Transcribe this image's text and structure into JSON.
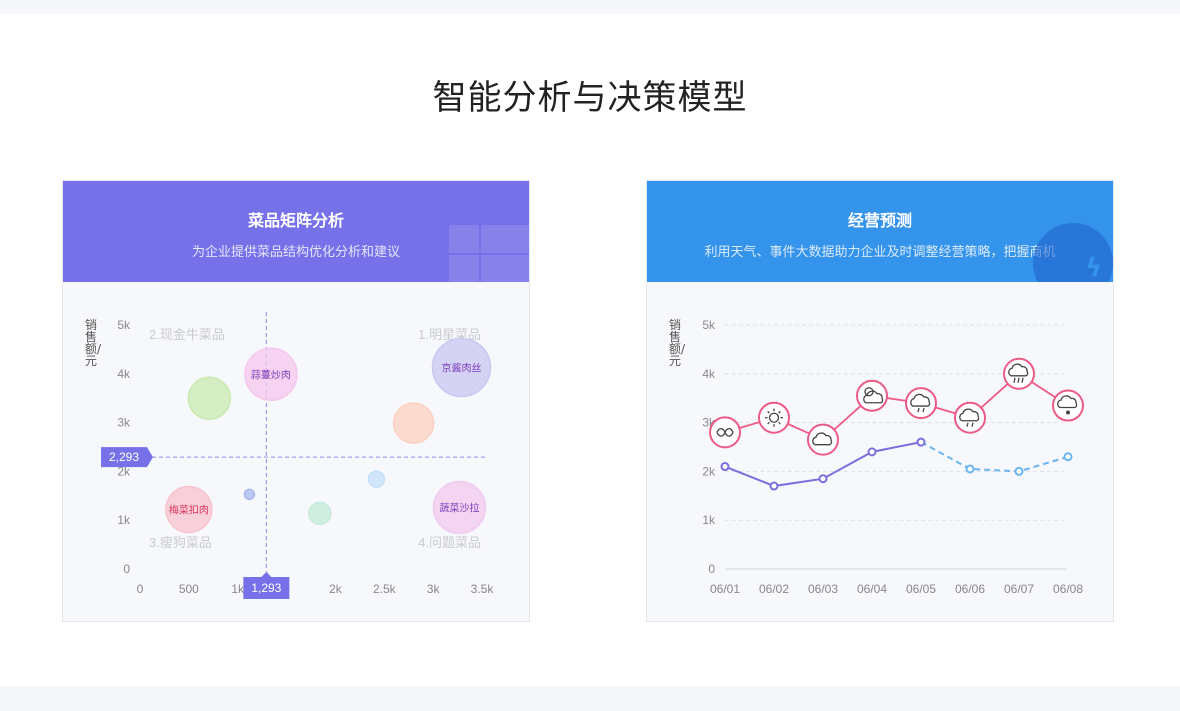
{
  "page": {
    "title": "智能分析与决策模型"
  },
  "left_card": {
    "title": "菜品矩阵分析",
    "subtitle": "为企业提供菜品结构优化分析和建议",
    "ylabel": "销售额/元",
    "quadrants": [
      "2.现金牛菜品",
      "1.明星菜品",
      "3.瘦狗菜品",
      "4.问题菜品"
    ],
    "yticks": [
      "5k",
      "4k",
      "3k",
      "2k",
      "1k",
      "0"
    ],
    "xticks": [
      "0",
      "500",
      "1k",
      "1,293",
      "2k",
      "2.5k",
      "3k",
      "3.5k"
    ],
    "crosshair": {
      "x": 1293,
      "y": 2293,
      "x_label": "1,293",
      "y_label": "2,293"
    }
  },
  "right_card": {
    "title": "经营预测",
    "subtitle": "利用天气、事件大数据助力企业及时调整经营策略，把握商机",
    "ylabel": "销售额/元",
    "yticks": [
      "5k",
      "4k",
      "3k",
      "2k",
      "1k",
      "0"
    ],
    "xticks": [
      "06/01",
      "06/02",
      "06/03",
      "06/04",
      "06/05",
      "06/06",
      "06/07",
      "06/08"
    ]
  },
  "chart_data": [
    {
      "type": "scatter",
      "title": "菜品矩阵分析",
      "xlabel": "",
      "ylabel": "销售额/元",
      "xlim": [
        0,
        3500
      ],
      "ylim": [
        0,
        5000
      ],
      "grid": false,
      "points": [
        {
          "label": "",
          "x": 710,
          "y": 3500,
          "size": 21,
          "color": "#c8eab0"
        },
        {
          "label": "蒜薹炒肉",
          "x": 1340,
          "y": 3990,
          "size": 26,
          "color": "#f5c7ee"
        },
        {
          "label": "京酱肉丝",
          "x": 3290,
          "y": 4130,
          "size": 29,
          "color": "#c9c7f2"
        },
        {
          "label": "",
          "x": 2800,
          "y": 2990,
          "size": 20,
          "color": "#fcd0c0"
        },
        {
          "label": "",
          "x": 2420,
          "y": 1840,
          "size": 8,
          "color": "#c3dff8"
        },
        {
          "label": "",
          "x": 1120,
          "y": 1530,
          "size": 5,
          "color": "#a9b8f0"
        },
        {
          "label": "梅菜扣肉",
          "x": 500,
          "y": 1220,
          "size": 23,
          "color": "#f8c3ce"
        },
        {
          "label": "",
          "x": 1840,
          "y": 1140,
          "size": 11,
          "color": "#c6ead9"
        },
        {
          "label": "蔬菜沙拉",
          "x": 3270,
          "y": 1260,
          "size": 26,
          "color": "#f1c9ef"
        }
      ]
    },
    {
      "type": "line",
      "title": "经营预测",
      "xlabel": "",
      "ylabel": "销售额/元",
      "ylim": [
        0,
        5000
      ],
      "grid": true,
      "categories": [
        "06/01",
        "06/02",
        "06/03",
        "06/04",
        "06/05",
        "06/06",
        "06/07",
        "06/08"
      ],
      "series": [
        {
          "name": "",
          "values": [
            2800,
            3100,
            2650,
            3550,
            3400,
            3100,
            4000,
            3350
          ],
          "weather": [
            "cloudy-icon",
            "sunny-icon",
            "cloud-icon",
            "partly-cloudy-icon",
            "drizzle-icon",
            "drizzle-icon",
            "rain-icon",
            "sleet-icon"
          ],
          "color": "#ec5a86"
        },
        {
          "name": "",
          "values": [
            2100,
            1700,
            1850,
            2400,
            2600,
            null,
            null,
            null
          ],
          "color": "#7b6fde"
        },
        {
          "name": "",
          "values": [
            null,
            null,
            null,
            null,
            2600,
            2050,
            2000,
            2300
          ],
          "color": "#6ab4f0",
          "dashed": true
        }
      ]
    }
  ]
}
